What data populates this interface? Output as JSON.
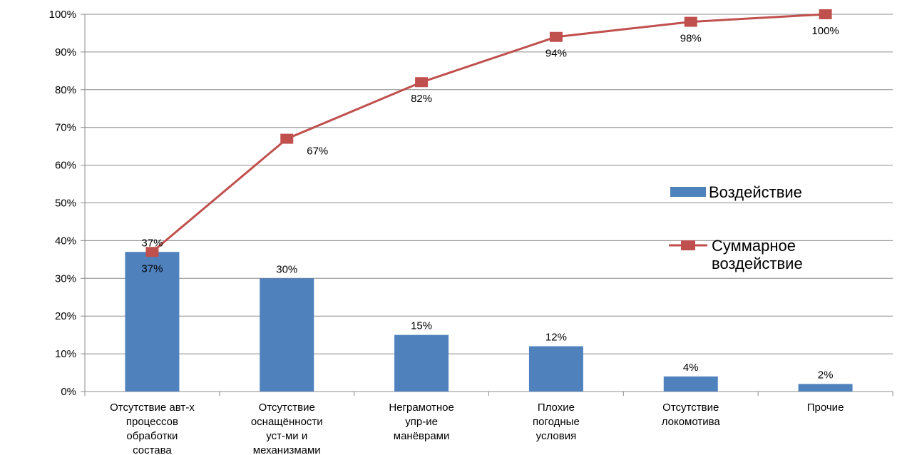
{
  "chart_data": {
    "type": "bar",
    "title": "",
    "xlabel": "",
    "ylabel": "",
    "ylim": [
      0,
      100
    ],
    "yticks": [
      "0%",
      "10%",
      "20%",
      "30%",
      "40%",
      "50%",
      "60%",
      "70%",
      "80%",
      "90%",
      "100%"
    ],
    "grid": true,
    "legend_position": "right",
    "categories": [
      [
        "Отсутствие авт-х",
        "процессов",
        "обработки",
        "состава"
      ],
      [
        "Отсутствие",
        "оснащённости",
        "уст-ми и",
        "механизмами"
      ],
      [
        "Неграмотное",
        "упр-ие",
        "манёврами"
      ],
      [
        "Плохие",
        "погодные",
        "условия"
      ],
      [
        "Отсутствие",
        "локомотива"
      ],
      [
        "Прочие"
      ]
    ],
    "series": [
      {
        "name": "Воздействие",
        "type": "bar",
        "color": "#4f81bd",
        "values": [
          37,
          30,
          15,
          12,
          4,
          2
        ],
        "labels": [
          "37%",
          "30%",
          "15%",
          "12%",
          "4%",
          "2%"
        ]
      },
      {
        "name": "Суммарное воздействие",
        "name_lines": [
          "Суммарное",
          "воздействие"
        ],
        "type": "line",
        "color": "#c0504d",
        "values": [
          37,
          67,
          82,
          94,
          98,
          100
        ],
        "labels": [
          "37%",
          "67%",
          "82%",
          "94%",
          "98%",
          "100%"
        ]
      }
    ]
  }
}
